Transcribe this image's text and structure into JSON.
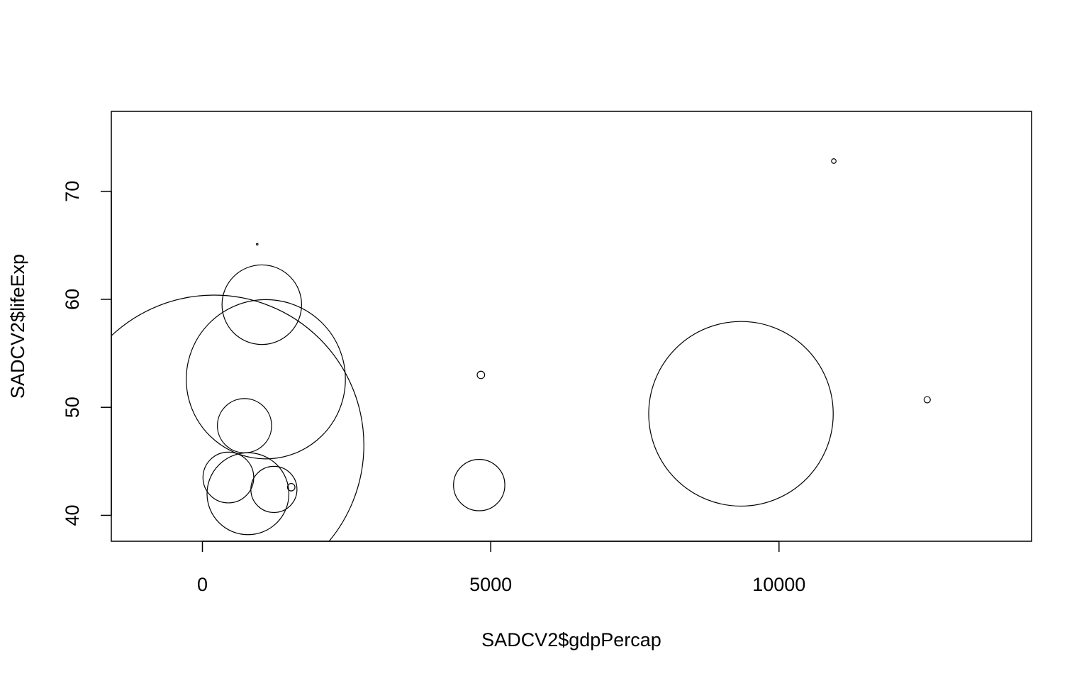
{
  "chart_data": {
    "type": "scatter",
    "subtype": "bubble (symbols circles)",
    "title": "",
    "xlabel": "SADCV2$gdpPercap",
    "ylabel": "SADCV2$lifeExp",
    "xlim": [
      -1580,
      14380
    ],
    "ylim": [
      37.6,
      77.4
    ],
    "x_ticks": [
      0,
      5000,
      10000
    ],
    "x_tick_labels": [
      "0",
      "5000",
      "10000"
    ],
    "y_ticks": [
      40,
      50,
      60,
      70
    ],
    "y_tick_labels": [
      "40",
      "50",
      "60",
      "70"
    ],
    "grid": false,
    "legend": "none",
    "color": "#000000",
    "points": [
      {
        "x": 200,
        "y": 46.5,
        "r": 2600
      },
      {
        "x": 1100,
        "y": 52.6,
        "r": 1380
      },
      {
        "x": 1030,
        "y": 59.5,
        "r": 690
      },
      {
        "x": 730,
        "y": 48.3,
        "r": 470
      },
      {
        "x": 450,
        "y": 43.5,
        "r": 440
      },
      {
        "x": 790,
        "y": 42.0,
        "r": 710
      },
      {
        "x": 1240,
        "y": 42.4,
        "r": 400
      },
      {
        "x": 1540,
        "y": 42.6,
        "r": 65
      },
      {
        "x": 950,
        "y": 65.1,
        "r": 12
      },
      {
        "x": 4800,
        "y": 42.8,
        "r": 445
      },
      {
        "x": 4830,
        "y": 53.0,
        "r": 65
      },
      {
        "x": 9340,
        "y": 49.4,
        "r": 1600
      },
      {
        "x": 10950,
        "y": 72.8,
        "r": 40
      },
      {
        "x": 12570,
        "y": 50.7,
        "r": 55
      }
    ]
  }
}
